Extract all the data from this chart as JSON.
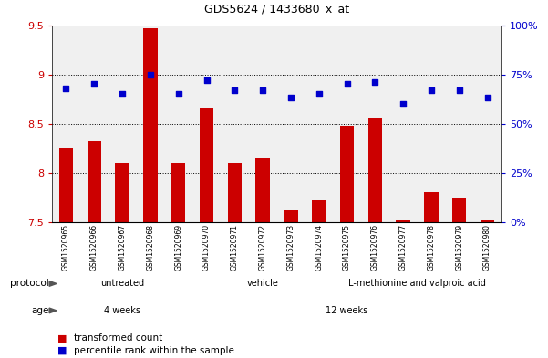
{
  "title": "GDS5624 / 1433680_x_at",
  "samples": [
    "GSM1520965",
    "GSM1520966",
    "GSM1520967",
    "GSM1520968",
    "GSM1520969",
    "GSM1520970",
    "GSM1520971",
    "GSM1520972",
    "GSM1520973",
    "GSM1520974",
    "GSM1520975",
    "GSM1520976",
    "GSM1520977",
    "GSM1520978",
    "GSM1520979",
    "GSM1520980"
  ],
  "transformed_count": [
    8.25,
    8.32,
    8.1,
    9.47,
    8.1,
    8.65,
    8.1,
    8.15,
    7.63,
    7.72,
    8.48,
    8.55,
    7.52,
    7.8,
    7.75,
    7.52
  ],
  "percentile_rank": [
    68,
    70,
    65,
    75,
    65,
    72,
    67,
    67,
    63,
    65,
    70,
    71,
    60,
    67,
    67,
    63
  ],
  "ylim_left": [
    7.5,
    9.5
  ],
  "ylim_right": [
    0,
    100
  ],
  "yticks_left": [
    7.5,
    8.0,
    8.5,
    9.0,
    9.5
  ],
  "ytick_labels_left": [
    "7.5",
    "8",
    "8.5",
    "9",
    "9.5"
  ],
  "yticks_right": [
    0,
    25,
    50,
    75,
    100
  ],
  "ytick_labels_right": [
    "0%",
    "25%",
    "50%",
    "75%",
    "100%"
  ],
  "bar_color": "#CC0000",
  "dot_color": "#0000CC",
  "bar_bottom": 7.5,
  "protocol_groups": [
    {
      "label": "untreated",
      "start": 0,
      "end": 4,
      "color": "#AAFFAA"
    },
    {
      "label": "vehicle",
      "start": 5,
      "end": 9,
      "color": "#55DD55"
    },
    {
      "label": "L-methionine and valproic acid",
      "start": 10,
      "end": 15,
      "color": "#33CC33"
    }
  ],
  "age_groups": [
    {
      "label": "4 weeks",
      "start": 0,
      "end": 4,
      "color": "#EE82EE"
    },
    {
      "label": "12 weeks",
      "start": 5,
      "end": 15,
      "color": "#CC55CC"
    }
  ],
  "legend_items": [
    {
      "color": "#CC0000",
      "label": "transformed count"
    },
    {
      "color": "#0000CC",
      "label": "percentile rank within the sample"
    }
  ],
  "plot_bg": "#F0F0F0",
  "sample_cell_color": "#C8C8C8",
  "grid_dotted_color": "black"
}
